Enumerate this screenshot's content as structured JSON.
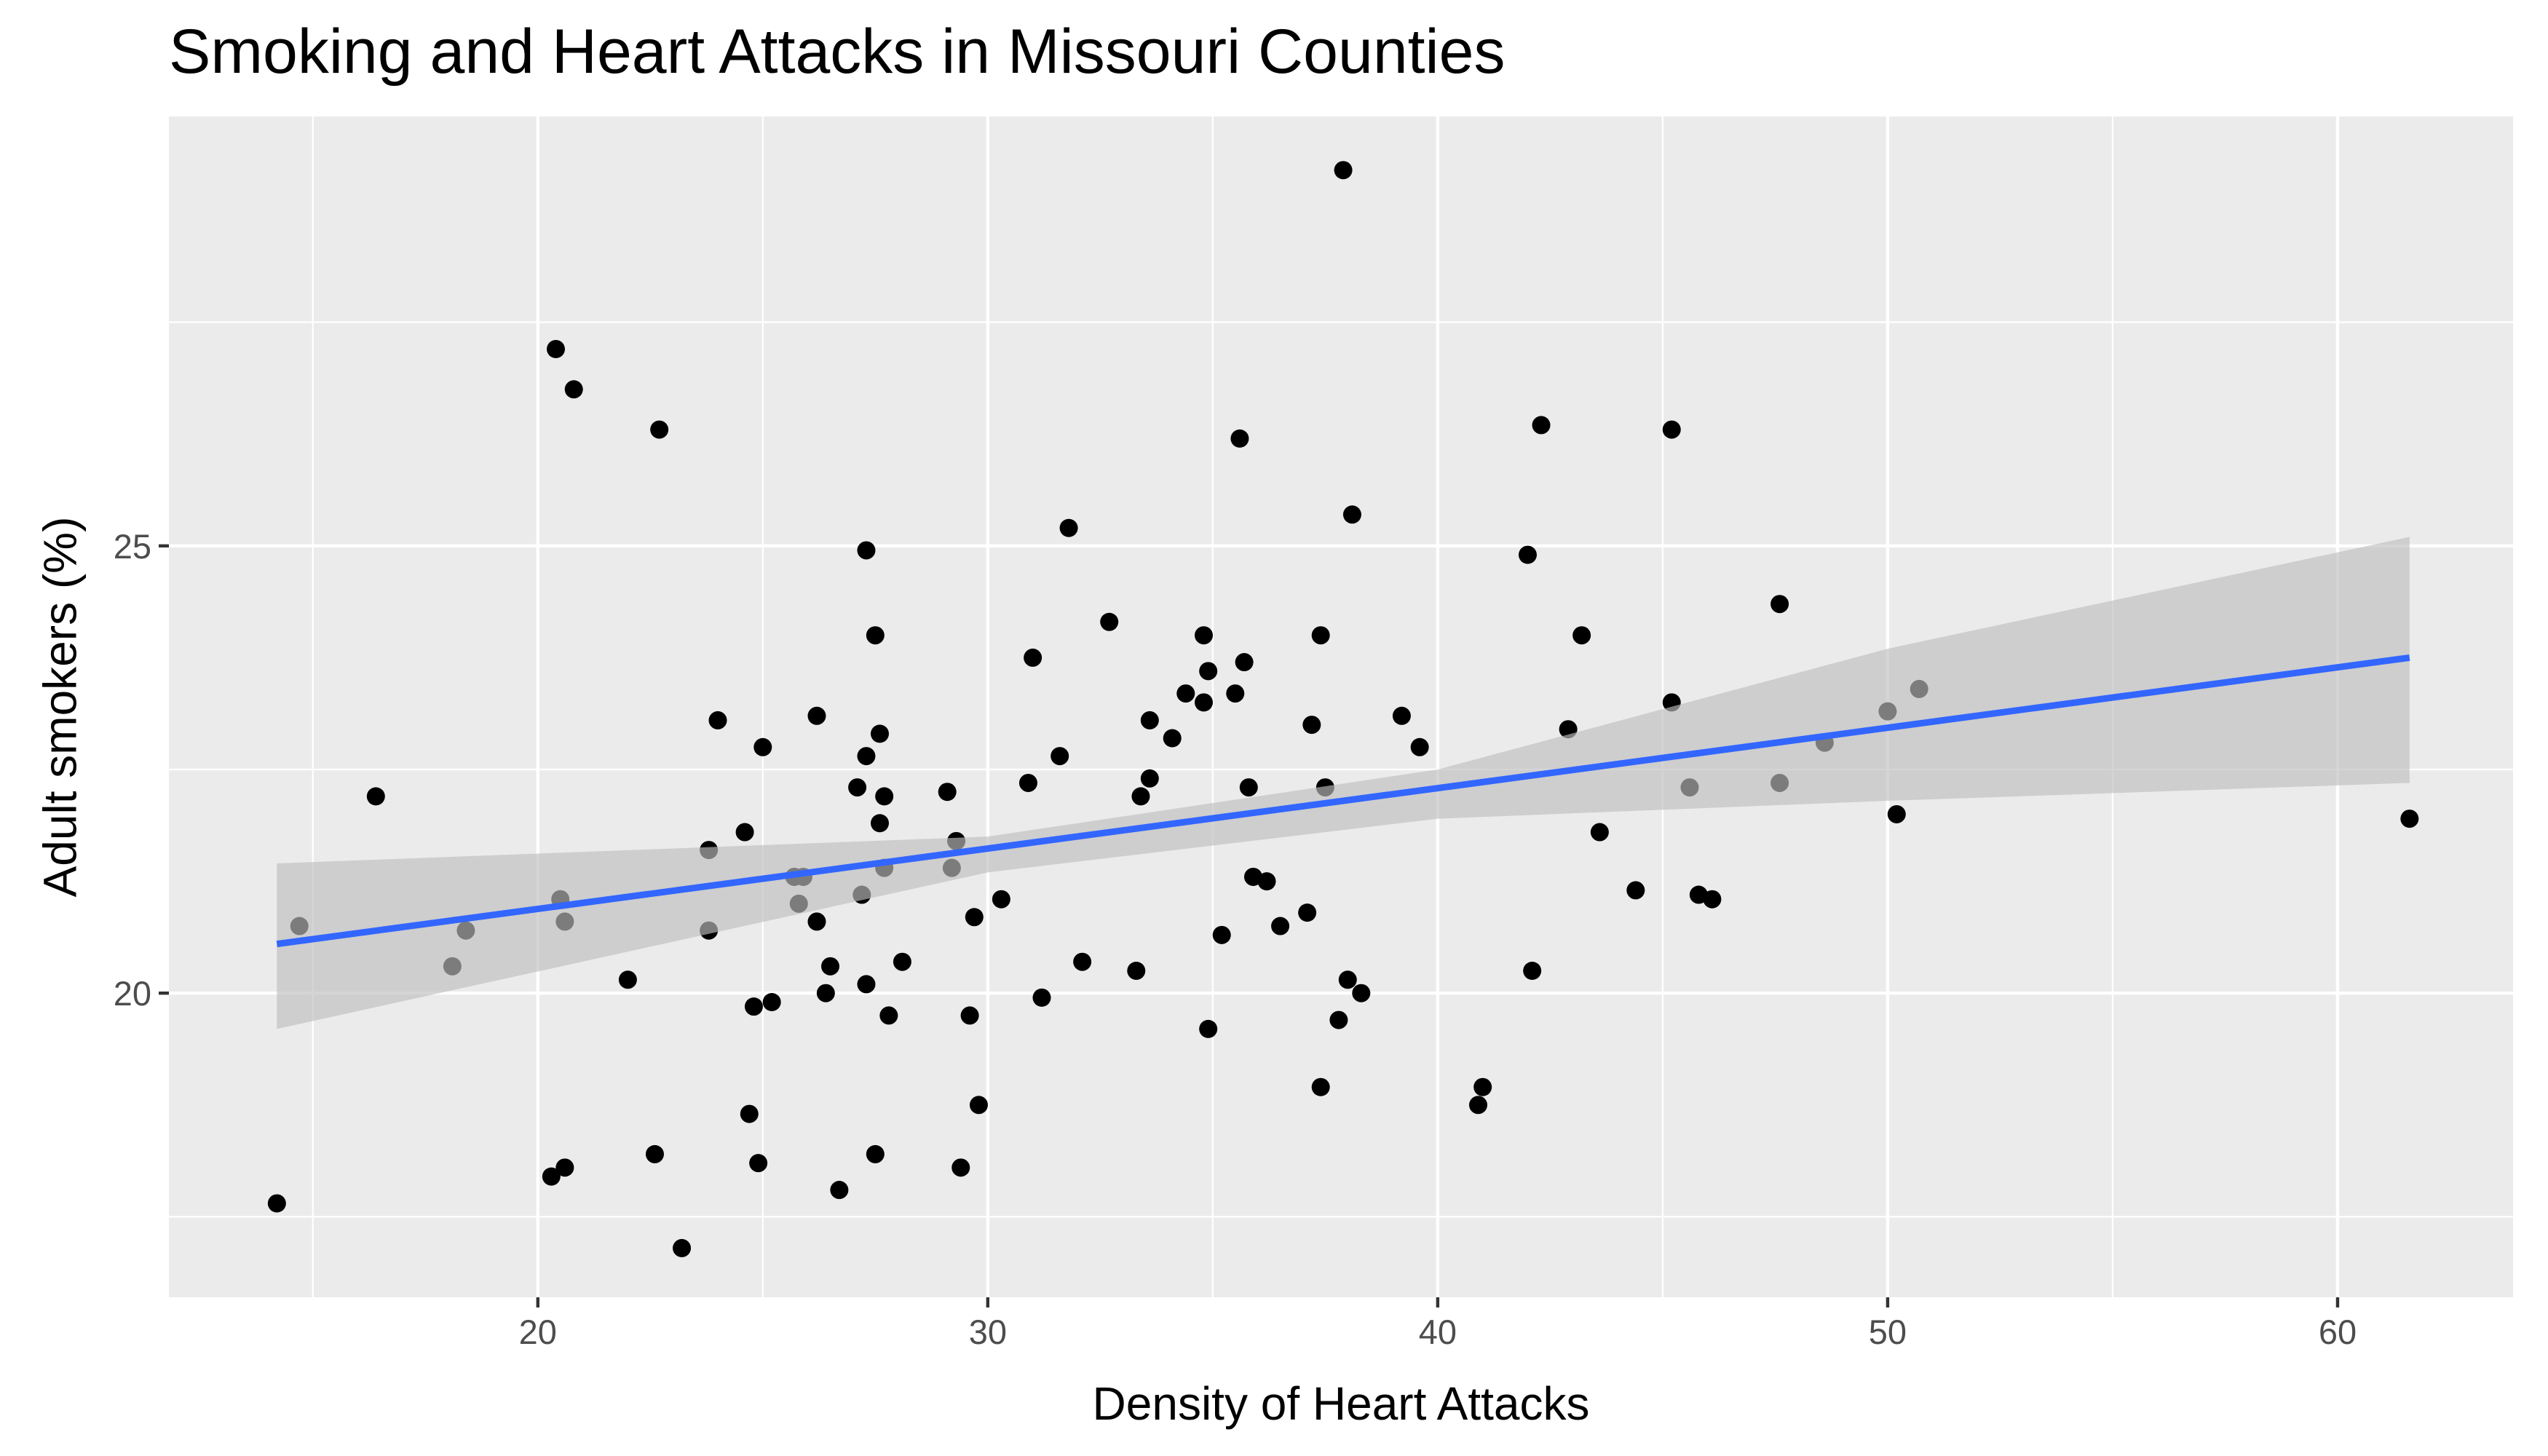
{
  "chart_data": {
    "type": "scatter",
    "title": "Smoking and Heart Attacks in Missouri Counties",
    "xlabel": "Density of Heart Attacks",
    "ylabel": "Adult smokers (%)",
    "xlim": [
      11.8,
      63.9
    ],
    "ylim": [
      16.6,
      29.8
    ],
    "x_ticks": [
      20,
      30,
      40,
      50,
      60
    ],
    "y_ticks": [
      20,
      25
    ],
    "grid": true,
    "colors": {
      "panel": "#ebebeb",
      "grid": "#ffffff",
      "points": "#000000",
      "fit_line": "#3366ff",
      "ribbon": "#bfbfbf"
    },
    "fit": {
      "method": "lm",
      "x_range": [
        14.2,
        61.6
      ],
      "line": [
        [
          14.2,
          20.55
        ],
        [
          61.6,
          23.75
        ]
      ],
      "ribbon_upper": [
        [
          14.2,
          21.45
        ],
        [
          30,
          21.75
        ],
        [
          40,
          22.5
        ],
        [
          50,
          23.85
        ],
        [
          61.6,
          25.1
        ]
      ],
      "ribbon_lower": [
        [
          14.2,
          19.6
        ],
        [
          30,
          21.35
        ],
        [
          40,
          21.95
        ],
        [
          50,
          22.15
        ],
        [
          61.6,
          22.35
        ]
      ]
    },
    "points": [
      [
        14.2,
        17.65
      ],
      [
        14.7,
        20.75
      ],
      [
        16.4,
        22.2
      ],
      [
        18.1,
        20.3
      ],
      [
        18.4,
        20.7
      ],
      [
        20.4,
        27.2
      ],
      [
        20.5,
        21.05
      ],
      [
        20.6,
        20.8
      ],
      [
        20.8,
        26.75
      ],
      [
        20.3,
        17.95
      ],
      [
        20.6,
        18.05
      ],
      [
        22.0,
        20.15
      ],
      [
        22.6,
        18.2
      ],
      [
        22.7,
        26.3
      ],
      [
        23.2,
        17.15
      ],
      [
        23.8,
        21.6
      ],
      [
        23.8,
        20.7
      ],
      [
        24.0,
        23.05
      ],
      [
        24.6,
        21.8
      ],
      [
        24.7,
        18.65
      ],
      [
        24.8,
        19.85
      ],
      [
        24.9,
        18.1
      ],
      [
        25.0,
        22.75
      ],
      [
        25.2,
        19.9
      ],
      [
        25.7,
        21.3
      ],
      [
        25.8,
        21.0
      ],
      [
        25.9,
        21.3
      ],
      [
        26.2,
        23.1
      ],
      [
        26.2,
        20.8
      ],
      [
        26.4,
        20.0
      ],
      [
        26.5,
        20.3
      ],
      [
        26.7,
        17.8
      ],
      [
        27.1,
        22.3
      ],
      [
        27.3,
        24.95
      ],
      [
        27.2,
        21.1
      ],
      [
        27.3,
        22.65
      ],
      [
        27.3,
        20.1
      ],
      [
        27.5,
        24.0
      ],
      [
        27.6,
        22.9
      ],
      [
        27.6,
        21.9
      ],
      [
        27.7,
        22.2
      ],
      [
        27.7,
        21.4
      ],
      [
        27.8,
        19.75
      ],
      [
        27.5,
        18.2
      ],
      [
        28.1,
        20.35
      ],
      [
        29.1,
        22.25
      ],
      [
        29.2,
        21.4
      ],
      [
        29.3,
        21.7
      ],
      [
        29.4,
        18.05
      ],
      [
        29.7,
        20.85
      ],
      [
        29.8,
        18.75
      ],
      [
        29.6,
        19.75
      ],
      [
        30.3,
        21.05
      ],
      [
        30.9,
        22.35
      ],
      [
        31.0,
        23.75
      ],
      [
        31.2,
        19.95
      ],
      [
        31.6,
        22.65
      ],
      [
        31.8,
        25.2
      ],
      [
        32.1,
        20.35
      ],
      [
        32.7,
        24.15
      ],
      [
        33.3,
        20.25
      ],
      [
        33.4,
        22.2
      ],
      [
        33.6,
        23.05
      ],
      [
        33.6,
        22.4
      ],
      [
        34.1,
        22.85
      ],
      [
        34.4,
        23.35
      ],
      [
        34.8,
        24.0
      ],
      [
        34.9,
        23.6
      ],
      [
        34.8,
        23.25
      ],
      [
        34.9,
        19.6
      ],
      [
        35.2,
        20.65
      ],
      [
        35.5,
        23.35
      ],
      [
        35.6,
        26.2
      ],
      [
        35.7,
        23.7
      ],
      [
        35.8,
        22.3
      ],
      [
        35.9,
        21.3
      ],
      [
        36.2,
        21.25
      ],
      [
        36.5,
        20.75
      ],
      [
        37.1,
        20.9
      ],
      [
        37.2,
        23.0
      ],
      [
        37.4,
        24.0
      ],
      [
        37.5,
        22.3
      ],
      [
        37.4,
        18.95
      ],
      [
        37.8,
        19.7
      ],
      [
        37.9,
        29.2
      ],
      [
        38.0,
        20.15
      ],
      [
        38.1,
        25.35
      ],
      [
        38.3,
        20.0
      ],
      [
        39.2,
        23.1
      ],
      [
        39.6,
        22.75
      ],
      [
        40.9,
        18.75
      ],
      [
        41.0,
        18.95
      ],
      [
        42.0,
        24.9
      ],
      [
        42.1,
        20.25
      ],
      [
        42.3,
        26.35
      ],
      [
        42.9,
        22.95
      ],
      [
        43.2,
        24.0
      ],
      [
        43.6,
        21.8
      ],
      [
        44.4,
        21.15
      ],
      [
        45.2,
        26.3
      ],
      [
        45.2,
        23.25
      ],
      [
        45.6,
        22.3
      ],
      [
        45.8,
        21.1
      ],
      [
        46.1,
        21.05
      ],
      [
        47.6,
        24.35
      ],
      [
        47.6,
        22.35
      ],
      [
        48.6,
        22.8
      ],
      [
        50.0,
        23.15
      ],
      [
        50.2,
        22.0
      ],
      [
        50.7,
        23.4
      ],
      [
        61.6,
        21.95
      ]
    ]
  }
}
